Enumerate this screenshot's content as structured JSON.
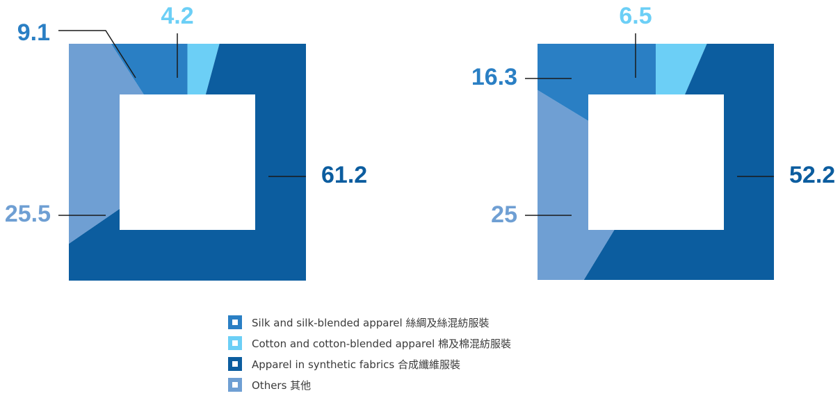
{
  "colors": {
    "silk": "#2a7fc4",
    "cotton": "#6ccff6",
    "synthetic": "#0c5d9f",
    "others": "#6f9fd3"
  },
  "chart_data": [
    {
      "type": "pie",
      "unit": "%",
      "series": [
        {
          "key": "cotton",
          "value": 4.2,
          "label": "4.2"
        },
        {
          "key": "synthetic",
          "value": 61.2,
          "label": "61.2"
        },
        {
          "key": "others",
          "value": 25.5,
          "label": "25.5"
        },
        {
          "key": "silk",
          "value": 9.1,
          "label": "9.1"
        }
      ]
    },
    {
      "type": "pie",
      "unit": "%",
      "series": [
        {
          "key": "cotton",
          "value": 6.5,
          "label": "6.5"
        },
        {
          "key": "synthetic",
          "value": 52.2,
          "label": "52.2"
        },
        {
          "key": "others",
          "value": 25,
          "label": "25"
        },
        {
          "key": "silk",
          "value": 16.3,
          "label": "16.3"
        }
      ]
    }
  ],
  "legend": [
    {
      "key": "silk",
      "label": "Silk and silk-blended apparel 絲綢及絲混紡服裝"
    },
    {
      "key": "cotton",
      "label": "Cotton and cotton-blended apparel 棉及棉混紡服裝"
    },
    {
      "key": "synthetic",
      "label": "Apparel in synthetic fabrics 合成纖維服裝"
    },
    {
      "key": "others",
      "label": "Others 其他"
    }
  ]
}
